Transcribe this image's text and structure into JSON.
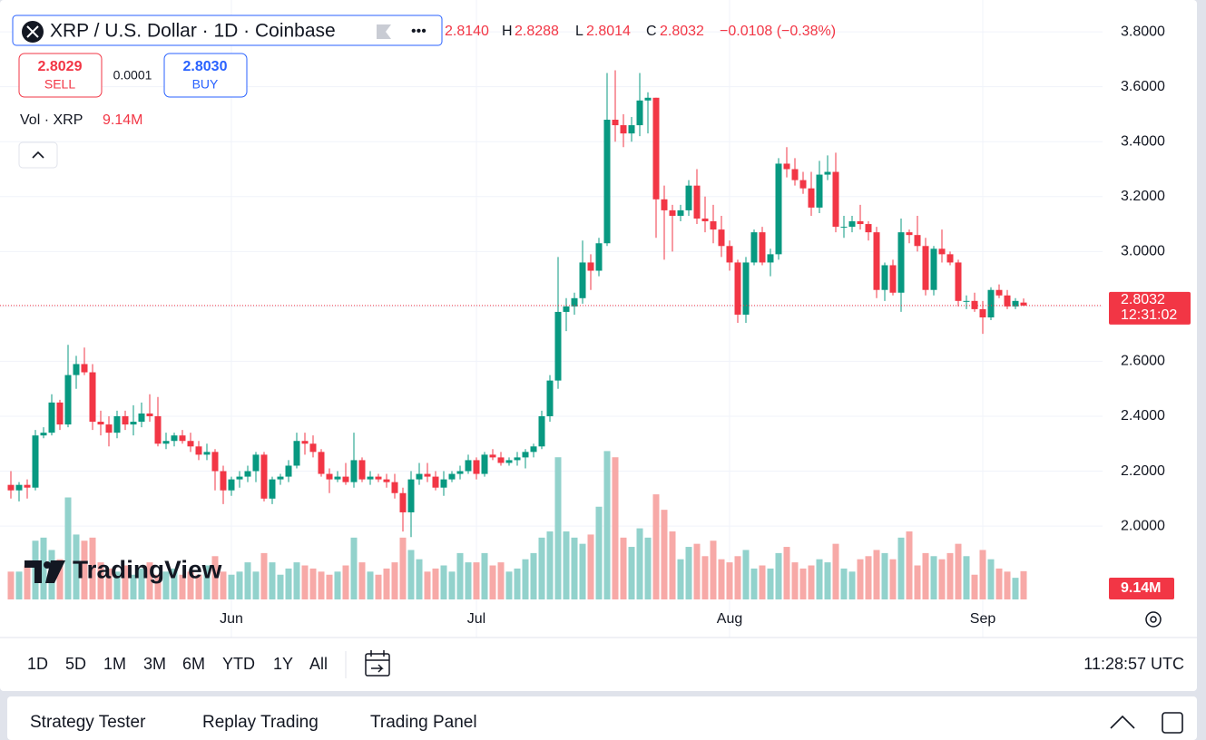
{
  "header": {
    "symbol": "XRP / U.S. Dollar · 1D · Coinbase",
    "open": "2.8140",
    "high_label": "H",
    "high": "2.8288",
    "low_label": "L",
    "low": "2.8014",
    "close_label": "C",
    "close": "2.8032",
    "change": "−0.0108 (−0.38%)"
  },
  "trade": {
    "sell_price": "2.8029",
    "sell_label": "SELL",
    "spread": "0.0001",
    "buy_price": "2.8030",
    "buy_label": "BUY"
  },
  "volume_legend": {
    "label": "Vol · XRP",
    "value": "9.14M"
  },
  "countdown": "12:31:02",
  "logo": "TradingView",
  "timeframes": [
    "1D",
    "5D",
    "1M",
    "3M",
    "6M",
    "YTD",
    "1Y",
    "All"
  ],
  "clock": "11:28:57 UTC",
  "tabs": [
    "Strategy Tester",
    "Replay Trading",
    "Trading Panel"
  ],
  "chart_data": {
    "type": "candlestick",
    "categories": [
      null,
      null,
      null,
      null,
      null,
      null,
      null,
      null,
      null,
      null,
      null,
      null,
      null,
      null,
      null,
      null,
      null,
      null,
      null,
      null,
      null,
      null,
      null,
      null,
      null,
      null,
      null,
      "Jun",
      null,
      null,
      null,
      null,
      null,
      null,
      null,
      null,
      null,
      null,
      null,
      null,
      null,
      null,
      null,
      null,
      null,
      null,
      null,
      null,
      null,
      null,
      null,
      null,
      null,
      null,
      null,
      null,
      null,
      "Jul",
      null,
      null,
      null,
      null,
      null,
      null,
      null,
      null,
      null,
      null,
      null,
      null,
      null,
      null,
      null,
      null,
      null,
      null,
      null,
      null,
      null,
      null,
      null,
      null,
      null,
      null,
      null,
      null,
      null,
      null,
      "Aug",
      null,
      null,
      null,
      null,
      null,
      null,
      null,
      null,
      null,
      null,
      null,
      null,
      null,
      null,
      null,
      null,
      null,
      null,
      null,
      null,
      null,
      null,
      null,
      null,
      null,
      null,
      null,
      null,
      null,
      null,
      "Sep",
      null,
      null,
      null,
      null,
      null
    ],
    "open": [
      2.15,
      2.13,
      2.15,
      2.14,
      2.33,
      2.34,
      2.45,
      2.37,
      2.55,
      2.59,
      2.56,
      2.38,
      2.37,
      2.34,
      2.4,
      2.37,
      2.38,
      2.41,
      2.4,
      2.3,
      2.31,
      2.33,
      2.31,
      2.29,
      2.26,
      2.27,
      2.2,
      2.13,
      2.17,
      2.18,
      2.2,
      2.26,
      2.1,
      2.17,
      2.18,
      2.22,
      2.31,
      2.3,
      2.27,
      2.19,
      2.17,
      2.18,
      2.16,
      2.24,
      2.17,
      2.18,
      2.17,
      2.16,
      2.12,
      2.05,
      2.17,
      2.19,
      2.18,
      2.14,
      2.17,
      2.19,
      2.2,
      2.24,
      2.19,
      2.26,
      2.25,
      2.23,
      2.24,
      2.25,
      2.27,
      2.29,
      2.4,
      2.53,
      2.78,
      2.8,
      2.83,
      2.96,
      2.93,
      3.03,
      3.48,
      3.46,
      3.43,
      3.46,
      3.55,
      3.56,
      3.19,
      3.15,
      3.13,
      3.15,
      3.24,
      3.12,
      3.11,
      3.08,
      3.02,
      2.96,
      2.77,
      2.96,
      3.07,
      2.96,
      2.99,
      3.32,
      3.3,
      3.26,
      3.23,
      3.16,
      3.28,
      3.29,
      3.09,
      3.09,
      3.11,
      3.1,
      3.07,
      2.86,
      2.95,
      2.85,
      3.07,
      3.06,
      3.02,
      2.86,
      3.01,
      2.99,
      2.96,
      2.82,
      2.82,
      2.79,
      2.76,
      2.86,
      2.84,
      2.8,
      2.814
    ],
    "high": [
      2.2,
      2.16,
      2.17,
      2.35,
      2.36,
      2.48,
      2.46,
      2.66,
      2.62,
      2.65,
      2.59,
      2.42,
      2.4,
      2.42,
      2.42,
      2.44,
      2.45,
      2.48,
      2.47,
      2.34,
      2.34,
      2.35,
      2.34,
      2.31,
      2.3,
      2.28,
      2.22,
      2.18,
      2.2,
      2.22,
      2.27,
      2.27,
      2.18,
      2.19,
      2.24,
      2.34,
      2.34,
      2.33,
      2.28,
      2.21,
      2.2,
      2.23,
      2.34,
      2.25,
      2.2,
      2.19,
      2.19,
      2.19,
      2.14,
      2.2,
      2.23,
      2.23,
      2.2,
      2.2,
      2.2,
      2.22,
      2.26,
      2.25,
      2.27,
      2.28,
      2.27,
      2.25,
      2.27,
      2.28,
      2.3,
      2.42,
      2.55,
      2.98,
      2.83,
      2.85,
      3.04,
      2.99,
      3.05,
      3.65,
      3.66,
      3.5,
      3.49,
      3.65,
      3.58,
      3.56,
      3.24,
      3.17,
      3.17,
      3.26,
      3.3,
      3.2,
      3.17,
      3.13,
      3.04,
      2.97,
      2.98,
      3.08,
      3.09,
      3.01,
      3.34,
      3.38,
      3.34,
      3.29,
      3.29,
      3.33,
      3.35,
      3.36,
      3.13,
      3.13,
      3.17,
      3.11,
      3.09,
      2.96,
      2.97,
      3.12,
      3.08,
      3.13,
      3.05,
      3.02,
      3.08,
      3.0,
      2.97,
      2.84,
      2.85,
      2.82,
      2.87,
      2.88,
      2.86,
      2.83,
      2.8288
    ],
    "low": [
      2.1,
      2.09,
      2.1,
      2.13,
      2.32,
      2.33,
      2.35,
      2.36,
      2.5,
      2.55,
      2.35,
      2.33,
      2.29,
      2.32,
      2.35,
      2.33,
      2.36,
      2.38,
      2.29,
      2.28,
      2.29,
      2.3,
      2.27,
      2.24,
      2.24,
      2.13,
      2.08,
      2.11,
      2.14,
      2.16,
      2.16,
      2.09,
      2.08,
      2.15,
      2.16,
      2.21,
      2.26,
      2.25,
      2.18,
      2.12,
      2.16,
      2.15,
      2.14,
      2.16,
      2.15,
      2.16,
      2.14,
      2.1,
      1.98,
      1.96,
      2.15,
      2.16,
      2.13,
      2.11,
      2.16,
      2.17,
      2.19,
      2.17,
      2.18,
      2.24,
      2.22,
      2.22,
      2.22,
      2.21,
      2.25,
      2.28,
      2.38,
      2.5,
      2.71,
      2.77,
      2.81,
      2.86,
      2.91,
      3.02,
      3.4,
      3.38,
      3.4,
      3.42,
      3.43,
      3.05,
      2.97,
      3.0,
      3.11,
      3.13,
      3.1,
      3.07,
      3.03,
      2.98,
      2.93,
      2.74,
      2.74,
      2.95,
      2.95,
      2.91,
      2.97,
      3.27,
      3.24,
      3.21,
      3.13,
      3.14,
      3.26,
      3.07,
      3.05,
      3.07,
      3.08,
      3.04,
      2.83,
      2.82,
      2.84,
      2.78,
      3.03,
      3.0,
      2.84,
      2.84,
      2.96,
      2.95,
      2.8,
      2.79,
      2.78,
      2.7,
      2.75,
      2.83,
      2.79,
      2.79,
      2.8014
    ],
    "close": [
      2.13,
      2.15,
      2.14,
      2.33,
      2.34,
      2.45,
      2.37,
      2.55,
      2.59,
      2.56,
      2.38,
      2.37,
      2.34,
      2.4,
      2.37,
      2.38,
      2.41,
      2.4,
      2.3,
      2.31,
      2.33,
      2.31,
      2.29,
      2.26,
      2.27,
      2.2,
      2.13,
      2.17,
      2.18,
      2.2,
      2.26,
      2.1,
      2.17,
      2.18,
      2.22,
      2.31,
      2.3,
      2.27,
      2.19,
      2.17,
      2.18,
      2.16,
      2.24,
      2.17,
      2.18,
      2.17,
      2.16,
      2.12,
      2.05,
      2.17,
      2.19,
      2.18,
      2.14,
      2.17,
      2.19,
      2.2,
      2.24,
      2.19,
      2.26,
      2.25,
      2.23,
      2.24,
      2.25,
      2.27,
      2.29,
      2.4,
      2.53,
      2.78,
      2.8,
      2.83,
      2.96,
      2.93,
      3.03,
      3.48,
      3.46,
      3.43,
      3.46,
      3.55,
      3.56,
      3.19,
      3.15,
      3.13,
      3.15,
      3.24,
      3.12,
      3.11,
      3.08,
      3.02,
      2.96,
      2.77,
      2.96,
      3.07,
      2.96,
      2.99,
      3.32,
      3.3,
      3.26,
      3.23,
      3.16,
      3.28,
      3.29,
      3.09,
      3.09,
      3.11,
      3.1,
      3.07,
      2.86,
      2.95,
      2.85,
      3.07,
      3.06,
      3.02,
      2.86,
      3.01,
      2.99,
      2.96,
      2.82,
      2.82,
      2.79,
      2.76,
      2.86,
      2.84,
      2.8,
      2.82,
      2.8032
    ],
    "volume": [
      9,
      9,
      11,
      19,
      20,
      16,
      13,
      33,
      21,
      19,
      20,
      12,
      10,
      9,
      11,
      8,
      10,
      12,
      8,
      9,
      10,
      8,
      9,
      8,
      11,
      14,
      9,
      8,
      9,
      12,
      9,
      15,
      12,
      8,
      10,
      12,
      11,
      10,
      9,
      8,
      9,
      11,
      20,
      12,
      9,
      8,
      10,
      12,
      20,
      16,
      13,
      9,
      10,
      11,
      9,
      15,
      12,
      12,
      15,
      11,
      12,
      9,
      10,
      13,
      15,
      20,
      22,
      46,
      22,
      20,
      18,
      21,
      30,
      48,
      46,
      20,
      17,
      23,
      20,
      34,
      29,
      22,
      13,
      17,
      18,
      14,
      19,
      13,
      12,
      14,
      16,
      10,
      11,
      10,
      15,
      17,
      12,
      10,
      11,
      13,
      12,
      18,
      10,
      9,
      13,
      14,
      16,
      15,
      13,
      20,
      22,
      11,
      15,
      14,
      13,
      15,
      18,
      14,
      8,
      16,
      13,
      10,
      9,
      7,
      9.14
    ],
    "ylim": [
      1.703,
      3.883
    ],
    "yticks": [
      {
        "value": 3.8,
        "label": "3.8000"
      },
      {
        "value": 3.6,
        "label": "3.6000"
      },
      {
        "value": 3.4,
        "label": "3.4000"
      },
      {
        "value": 3.2,
        "label": "3.2000"
      },
      {
        "value": 3.0,
        "label": "3.0000"
      },
      {
        "value": 2.8,
        "label": "2.8000"
      },
      {
        "value": 2.6,
        "label": "2.6000"
      },
      {
        "value": 2.4,
        "label": "2.4000"
      },
      {
        "value": 2.2,
        "label": "2.2000"
      },
      {
        "value": 2.0,
        "label": "2.0000"
      }
    ],
    "y2lim": [
      0,
      191
    ],
    "grid": true,
    "colors": {
      "up": "#089981",
      "down": "#f23645",
      "up_volume": "#92d2cc",
      "down_volume": "#f7a9a7"
    }
  }
}
